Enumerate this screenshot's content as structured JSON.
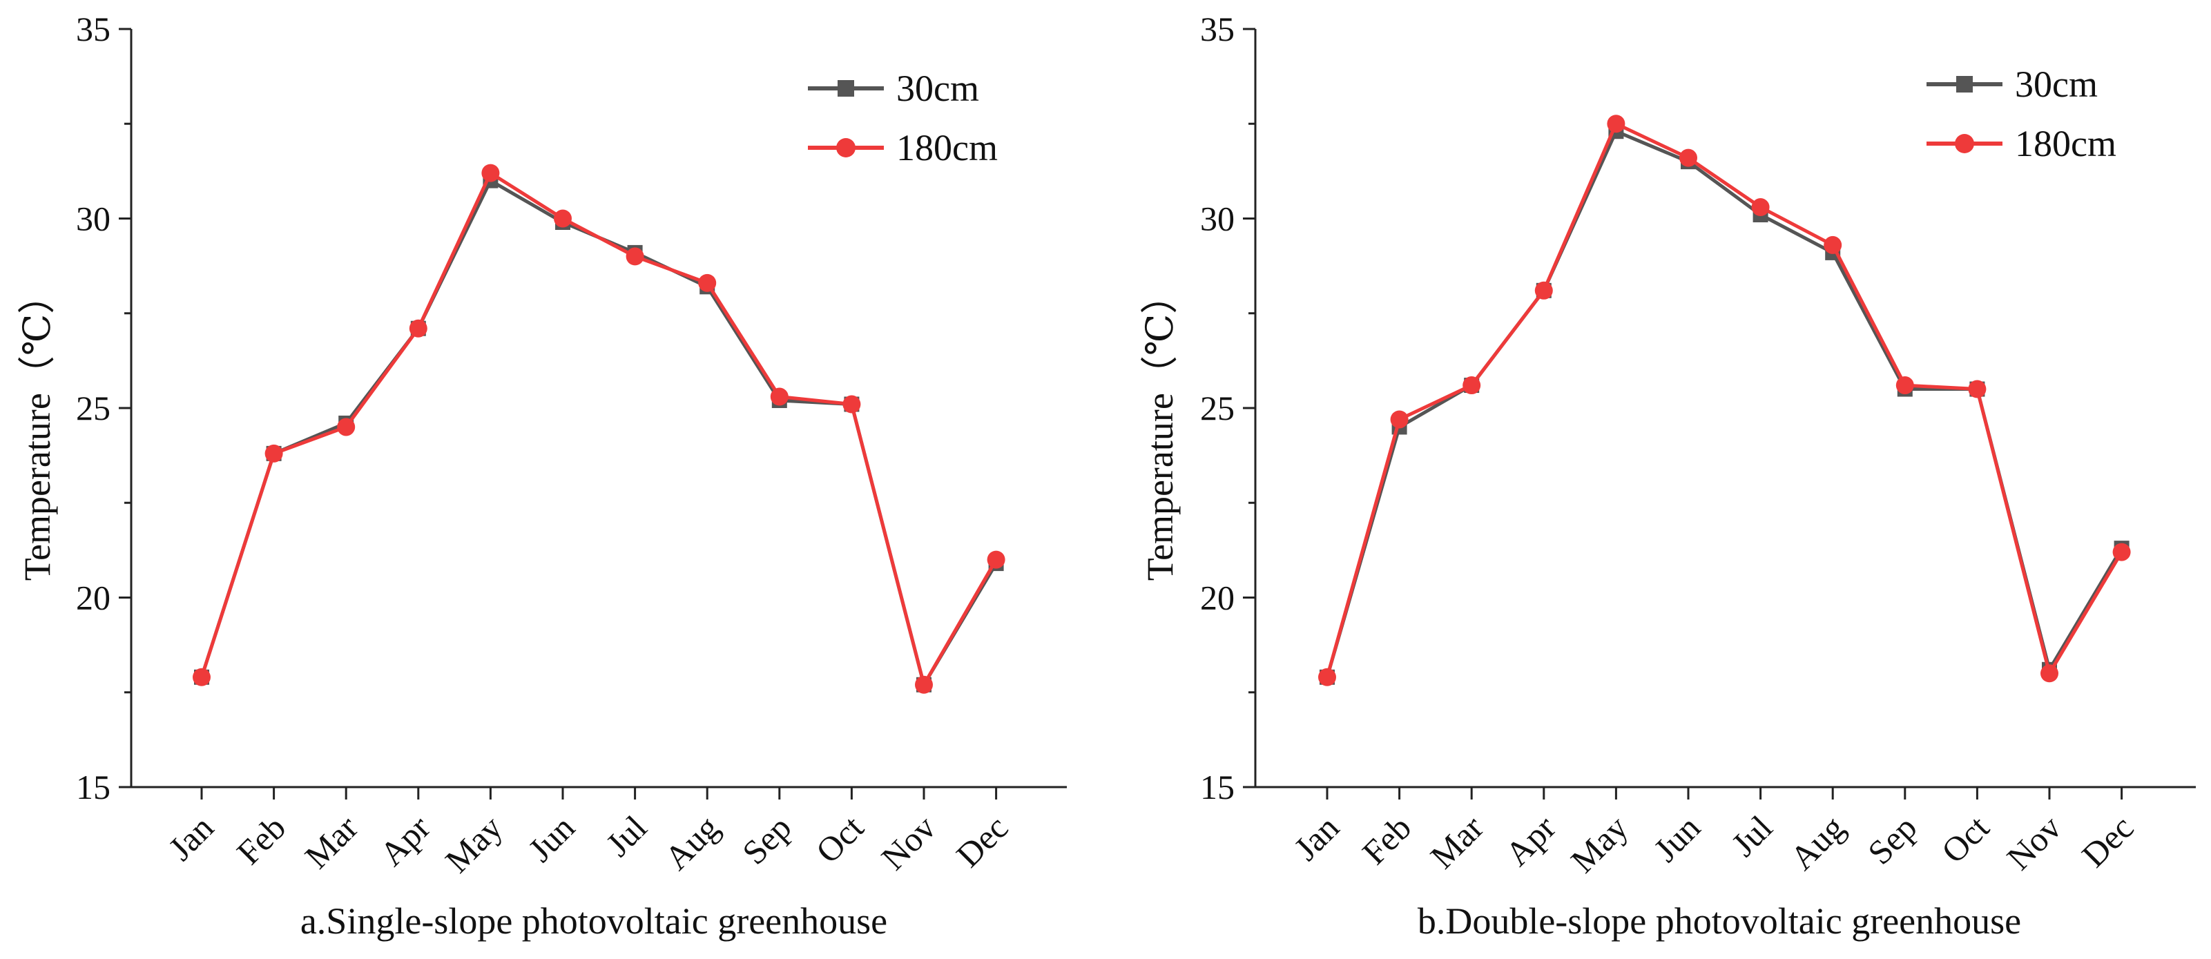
{
  "chart_data": [
    {
      "type": "line",
      "title": "a.Single-slope photovoltaic greenhouse",
      "xlabel": "",
      "ylabel": "Temperature（℃）",
      "ylim": [
        15,
        35
      ],
      "yticks": [
        "15",
        "20",
        "25",
        "30",
        "35"
      ],
      "categories": [
        "Jan",
        "Feb",
        "Mar",
        "Apr",
        "May",
        "Jun",
        "Jul",
        "Aug",
        "Sep",
        "Oct",
        "Nov",
        "Dec"
      ],
      "legend_position": "top-right",
      "series": [
        {
          "name": "30cm",
          "color": "#555555",
          "marker": "square",
          "values": [
            17.9,
            23.8,
            24.6,
            27.1,
            31.0,
            29.9,
            29.1,
            28.2,
            25.2,
            25.1,
            17.7,
            20.9
          ]
        },
        {
          "name": "180cm",
          "color": "#ee3a3a",
          "marker": "circle",
          "values": [
            17.9,
            23.8,
            24.5,
            27.1,
            31.2,
            30.0,
            29.0,
            28.3,
            25.3,
            25.1,
            17.7,
            21.0
          ]
        }
      ]
    },
    {
      "type": "line",
      "title": "b.Double-slope photovoltaic greenhouse",
      "xlabel": "",
      "ylabel": "Temperature（℃）",
      "ylim": [
        15,
        35
      ],
      "yticks": [
        "15",
        "20",
        "25",
        "30",
        "35"
      ],
      "categories": [
        "Jan",
        "Feb",
        "Mar",
        "Apr",
        "May",
        "Jun",
        "Jul",
        "Aug",
        "Sep",
        "Oct",
        "Nov",
        "Dec"
      ],
      "legend_position": "top-right",
      "series": [
        {
          "name": "30cm",
          "color": "#555555",
          "marker": "square",
          "values": [
            17.9,
            24.5,
            25.6,
            28.1,
            32.3,
            31.5,
            30.1,
            29.1,
            25.5,
            25.5,
            18.1,
            21.3
          ]
        },
        {
          "name": "180cm",
          "color": "#ee3a3a",
          "marker": "circle",
          "values": [
            17.9,
            24.7,
            25.6,
            28.1,
            32.5,
            31.6,
            30.3,
            29.3,
            25.6,
            25.5,
            18.0,
            21.2
          ]
        }
      ]
    }
  ]
}
